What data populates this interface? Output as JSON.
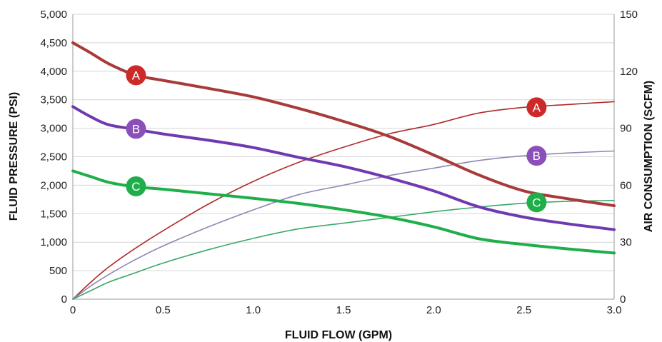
{
  "chart_data": {
    "type": "line",
    "title": "",
    "xlabel": "FLUID FLOW (GPM)",
    "ylabel": "FLUID PRESSURE (PSI)",
    "y2label": "AIR CONSUMPTION (SCFM)",
    "xlim": [
      0,
      3.0
    ],
    "ylim": [
      0,
      5000
    ],
    "y2lim": [
      0,
      150
    ],
    "x_ticks": [
      "0",
      "0.5",
      "1.0",
      "1.5",
      "2.0",
      "2.5",
      "3.0"
    ],
    "x_tick_values": [
      0,
      0.5,
      1.0,
      1.5,
      2.0,
      2.5,
      3.0
    ],
    "y_ticks": [
      "0",
      "500",
      "1,000",
      "1,500",
      "2,000",
      "2,500",
      "3,000",
      "3,500",
      "4,000",
      "4,500",
      "5,000"
    ],
    "y_tick_values": [
      0,
      500,
      1000,
      1500,
      2000,
      2500,
      3000,
      3500,
      4000,
      4500,
      5000
    ],
    "y2_ticks": [
      "0",
      "30",
      "60",
      "90",
      "120",
      "150"
    ],
    "y2_tick_values": [
      0,
      30,
      60,
      90,
      120,
      150
    ],
    "grid": true,
    "series": [
      {
        "name": "A",
        "axis": "left",
        "color": "#a83a3a",
        "weight": "heavy",
        "x": [
          0,
          0.1,
          0.2,
          0.35,
          0.5,
          0.75,
          1.0,
          1.25,
          1.5,
          1.75,
          2.0,
          2.25,
          2.5,
          2.75,
          3.0
        ],
        "y": [
          4500,
          4320,
          4130,
          3930,
          3840,
          3700,
          3550,
          3350,
          3120,
          2860,
          2530,
          2180,
          1900,
          1760,
          1640
        ],
        "marker": {
          "label": "A",
          "x": 0.35,
          "y": 3930,
          "color": "#cc2929"
        }
      },
      {
        "name": "B",
        "axis": "left",
        "color": "#6f3ab0",
        "weight": "heavy",
        "x": [
          0,
          0.1,
          0.2,
          0.35,
          0.5,
          0.75,
          1.0,
          1.25,
          1.5,
          1.75,
          2.0,
          2.25,
          2.5,
          2.75,
          3.0
        ],
        "y": [
          3380,
          3200,
          3060,
          2980,
          2900,
          2790,
          2660,
          2490,
          2330,
          2130,
          1900,
          1620,
          1440,
          1320,
          1220
        ],
        "marker": {
          "label": "B",
          "x": 0.35,
          "y": 2990,
          "color": "#8a4fb8"
        }
      },
      {
        "name": "C",
        "axis": "left",
        "color": "#1fae4a",
        "weight": "heavy",
        "x": [
          0,
          0.1,
          0.2,
          0.35,
          0.5,
          0.75,
          1.0,
          1.25,
          1.5,
          1.75,
          2.0,
          2.25,
          2.5,
          2.75,
          3.0
        ],
        "y": [
          2250,
          2150,
          2050,
          1970,
          1930,
          1850,
          1770,
          1680,
          1570,
          1440,
          1270,
          1060,
          960,
          880,
          810
        ],
        "marker": {
          "label": "C",
          "x": 0.35,
          "y": 1980,
          "color": "#1fae4a"
        }
      },
      {
        "name": "A",
        "axis": "right",
        "color": "#b02a2a",
        "weight": "light",
        "x": [
          0,
          0.1,
          0.2,
          0.35,
          0.5,
          0.75,
          1.0,
          1.25,
          1.5,
          1.75,
          2.0,
          2.25,
          2.5,
          2.75,
          3.0
        ],
        "y": [
          0,
          9,
          17,
          27,
          36,
          50,
          62,
          72,
          80,
          87,
          92,
          98,
          101,
          102.5,
          104
        ],
        "marker": {
          "label": "A",
          "x": 2.57,
          "y": 101,
          "color": "#cc2929"
        }
      },
      {
        "name": "B",
        "axis": "right",
        "color": "#8f86b4",
        "weight": "light",
        "x": [
          0,
          0.1,
          0.2,
          0.35,
          0.5,
          0.75,
          1.0,
          1.25,
          1.5,
          1.75,
          2.0,
          2.25,
          2.5,
          2.75,
          3.0
        ],
        "y": [
          0,
          7,
          13,
          21,
          28,
          38,
          47,
          55,
          60,
          65,
          69,
          73,
          75.5,
          77,
          78
        ],
        "marker": {
          "label": "B",
          "x": 2.57,
          "y": 75.5,
          "color": "#8a4fb8"
        }
      },
      {
        "name": "C",
        "axis": "right",
        "color": "#3aa86a",
        "weight": "light",
        "x": [
          0,
          0.1,
          0.2,
          0.35,
          0.5,
          0.75,
          1.0,
          1.25,
          1.5,
          1.75,
          2.0,
          2.25,
          2.5,
          2.75,
          3.0
        ],
        "y": [
          0,
          4.5,
          9,
          14,
          19,
          26,
          32,
          37,
          40,
          43,
          46,
          48.5,
          50.5,
          51.5,
          52
        ],
        "marker": {
          "label": "C",
          "x": 2.57,
          "y": 51,
          "color": "#1fae4a"
        }
      }
    ]
  }
}
